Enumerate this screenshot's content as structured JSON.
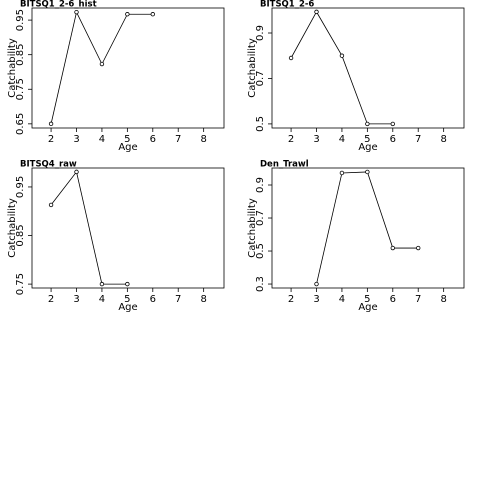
{
  "chart_data": [
    {
      "type": "line",
      "title": "BITSQ1_2-6_hist",
      "xlabel": "Age",
      "ylabel": "Catchability",
      "x": [
        2,
        3,
        4,
        5,
        6
      ],
      "values": [
        0.65,
        0.973,
        0.823,
        0.967,
        0.967
      ],
      "xlim": [
        1.25,
        8.8
      ],
      "xticks": [
        2,
        3,
        4,
        5,
        6,
        7,
        8
      ],
      "ylim": [
        0.638,
        0.985
      ],
      "yticks": [
        0.65,
        0.75,
        0.85,
        0.95
      ],
      "color": "#000000"
    },
    {
      "type": "line",
      "title": "BITSQ1_2-6",
      "xlabel": "Age",
      "ylabel": "Catchability",
      "x": [
        2,
        3,
        4,
        5,
        6
      ],
      "values": [
        0.79,
        0.993,
        0.8,
        0.5,
        0.5
      ],
      "xlim": [
        1.25,
        8.8
      ],
      "xticks": [
        2,
        3,
        4,
        5,
        6,
        7,
        8
      ],
      "ylim": [
        0.482,
        1.01
      ],
      "yticks": [
        0.5,
        0.7,
        0.9
      ],
      "color": "#000000"
    },
    {
      "type": "line",
      "title": "BITSQ4_raw",
      "xlabel": "Age",
      "ylabel": "Catchability",
      "x": [
        2,
        3,
        4,
        5
      ],
      "values": [
        0.913,
        0.981,
        0.75,
        0.75
      ],
      "xlim": [
        1.25,
        8.8
      ],
      "xticks": [
        2,
        3,
        4,
        5,
        6,
        7,
        8
      ],
      "ylim": [
        0.742,
        0.989
      ],
      "yticks": [
        0.75,
        0.85,
        0.95
      ],
      "color": "#000000"
    },
    {
      "type": "line",
      "title": "Den_Trawl",
      "xlabel": "Age",
      "ylabel": "Catchability",
      "x": [
        3,
        4,
        5,
        6,
        7
      ],
      "values": [
        0.3,
        0.973,
        0.979,
        0.518,
        0.518
      ],
      "xlim": [
        1.25,
        8.8
      ],
      "xticks": [
        2,
        3,
        4,
        5,
        6,
        7,
        8
      ],
      "ylim": [
        0.276,
        1.003
      ],
      "yticks": [
        0.3,
        0.5,
        0.7,
        0.9
      ],
      "color": "#000000"
    }
  ]
}
